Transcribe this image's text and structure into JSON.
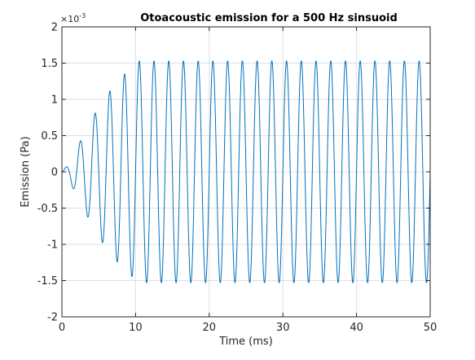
{
  "chart_data": {
    "type": "line",
    "title": "Otoacoustic emission for a 500 Hz sinsuoid",
    "xlabel": "Time (ms)",
    "ylabel": "Emission (Pa)",
    "xlim": [
      0,
      50
    ],
    "ylim": [
      -0.002,
      0.002
    ],
    "y_exponent_label": "×10",
    "y_exponent_power": "-3",
    "x_ticks": [
      0,
      10,
      20,
      30,
      40,
      50
    ],
    "x_tick_labels": [
      "0",
      "10",
      "20",
      "30",
      "40",
      "50"
    ],
    "y_ticks": [
      -2,
      -1.5,
      -1,
      -0.5,
      0,
      0.5,
      1,
      1.5,
      2
    ],
    "y_tick_labels": [
      "-2",
      "-1.5",
      "-1",
      "-0.5",
      "0",
      "0.5",
      "1",
      "1.5",
      "2"
    ],
    "grid": true,
    "series": [
      {
        "color": "#0072bd",
        "signal": {
          "form": "sinusoid",
          "frequency_hz": 500,
          "peak_amplitude_pa": 0.00153,
          "envelope_points": [
            [
              0,
              0
            ],
            [
              1,
              0.00012
            ],
            [
              2,
              0.00033
            ],
            [
              3,
              0.00052
            ],
            [
              4,
              0.00072
            ],
            [
              5,
              0.0009
            ],
            [
              6,
              0.00105
            ],
            [
              7,
              0.00118
            ],
            [
              8,
              0.0013
            ],
            [
              9,
              0.0014
            ],
            [
              10,
              0.00149
            ],
            [
              10.5,
              0.00153
            ],
            [
              50,
              0.00153
            ]
          ],
          "t_end_ms": 50
        }
      }
    ]
  }
}
